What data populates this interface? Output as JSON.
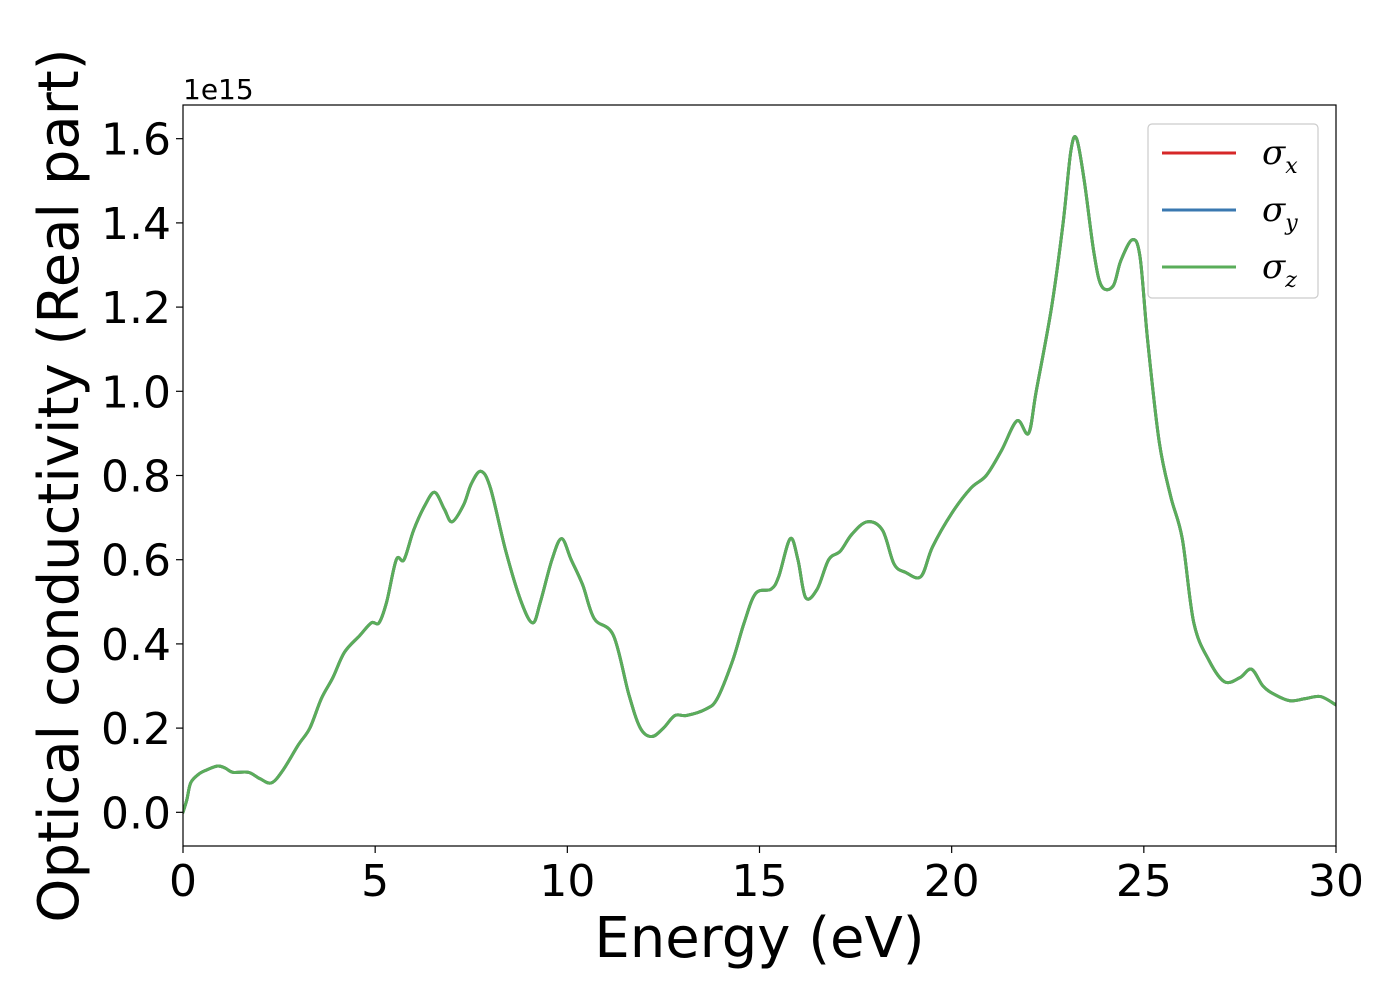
{
  "chart_data": {
    "type": "line",
    "xlabel": "Energy (eV)",
    "ylabel": "Optical conductivity (Real part)",
    "y_offset_label": "1e15",
    "xlim": [
      0,
      30
    ],
    "ylim": [
      -0.08,
      1.68
    ],
    "x_ticks": [
      0,
      5,
      10,
      15,
      20,
      25,
      30
    ],
    "x_tick_labels": [
      "0",
      "5",
      "10",
      "15",
      "20",
      "25",
      "30"
    ],
    "y_ticks": [
      0.0,
      0.2,
      0.4,
      0.6,
      0.8,
      1.0,
      1.2,
      1.4,
      1.6
    ],
    "y_tick_labels": [
      "0.0",
      "0.2",
      "0.4",
      "0.6",
      "0.8",
      "1.0",
      "1.2",
      "1.4",
      "1.6"
    ],
    "grid": false,
    "legend_position": "top-right",
    "series": [
      {
        "name": "σ",
        "subscript": "x",
        "color": "#d62728"
      },
      {
        "name": "σ",
        "subscript": "y",
        "color": "#3a78b0"
      },
      {
        "name": "σ",
        "subscript": "z",
        "color": "#5aad5a"
      }
    ],
    "x": [
      0,
      0.1,
      0.2,
      0.4,
      0.6,
      0.9,
      1.1,
      1.3,
      1.7,
      2.0,
      2.3,
      2.6,
      3.0,
      3.3,
      3.6,
      3.9,
      4.2,
      4.6,
      4.9,
      5.1,
      5.3,
      5.55,
      5.75,
      6.0,
      6.3,
      6.55,
      6.8,
      7.0,
      7.3,
      7.5,
      7.75,
      8.0,
      8.4,
      8.8,
      9.1,
      9.3,
      9.6,
      9.85,
      10.1,
      10.4,
      10.7,
      11.2,
      11.6,
      11.9,
      12.2,
      12.5,
      12.8,
      13.1,
      13.6,
      13.9,
      14.3,
      14.6,
      14.9,
      15.3,
      15.5,
      15.8,
      16.0,
      16.2,
      16.5,
      16.8,
      17.1,
      17.4,
      17.8,
      18.2,
      18.5,
      18.8,
      19.2,
      19.5,
      20.0,
      20.5,
      20.9,
      21.3,
      21.7,
      22.0,
      22.2,
      22.6,
      22.9,
      23.1,
      23.25,
      23.45,
      23.7,
      23.9,
      24.2,
      24.4,
      24.7,
      24.9,
      25.1,
      25.4,
      25.7,
      26.0,
      26.3,
      26.7,
      27.1,
      27.5,
      27.8,
      28.1,
      28.4,
      28.8,
      29.2,
      29.6,
      30.0
    ],
    "values": [
      0.0,
      0.03,
      0.07,
      0.09,
      0.1,
      0.11,
      0.105,
      0.095,
      0.095,
      0.08,
      0.07,
      0.1,
      0.16,
      0.2,
      0.27,
      0.32,
      0.38,
      0.42,
      0.45,
      0.45,
      0.5,
      0.6,
      0.6,
      0.67,
      0.73,
      0.76,
      0.72,
      0.69,
      0.73,
      0.78,
      0.81,
      0.77,
      0.62,
      0.5,
      0.45,
      0.5,
      0.6,
      0.65,
      0.6,
      0.54,
      0.46,
      0.42,
      0.28,
      0.2,
      0.18,
      0.2,
      0.23,
      0.23,
      0.245,
      0.27,
      0.36,
      0.45,
      0.52,
      0.53,
      0.56,
      0.65,
      0.6,
      0.51,
      0.53,
      0.6,
      0.62,
      0.66,
      0.69,
      0.67,
      0.59,
      0.57,
      0.56,
      0.63,
      0.71,
      0.77,
      0.8,
      0.86,
      0.93,
      0.9,
      1.0,
      1.2,
      1.4,
      1.57,
      1.6,
      1.5,
      1.33,
      1.25,
      1.25,
      1.31,
      1.36,
      1.32,
      1.12,
      0.88,
      0.75,
      0.65,
      0.45,
      0.36,
      0.31,
      0.32,
      0.34,
      0.3,
      0.28,
      0.265,
      0.27,
      0.275,
      0.255
    ]
  }
}
